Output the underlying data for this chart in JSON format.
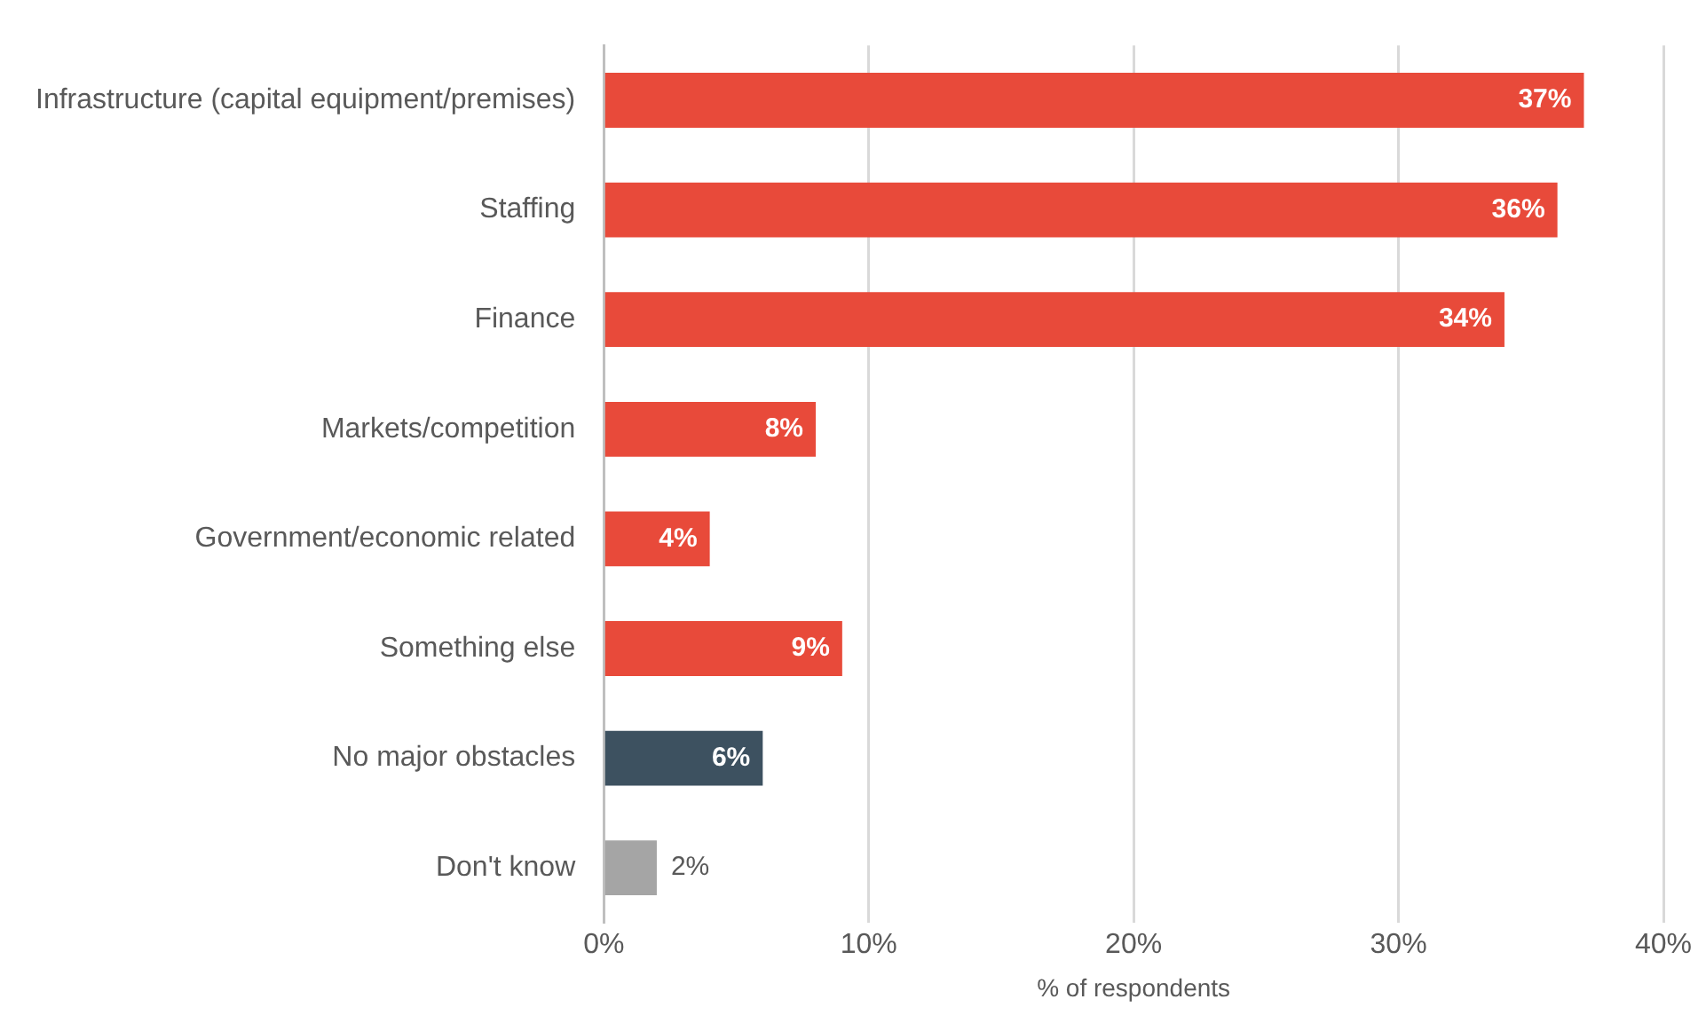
{
  "chart_data": {
    "type": "bar",
    "orientation": "horizontal",
    "xlabel": "% of respondents",
    "categories": [
      "Infrastructure (capital equipment/premises)",
      "Staffing",
      "Finance",
      "Markets/competition",
      "Government/economic related",
      "Something else",
      "No major obstacles",
      "Don't know"
    ],
    "values": [
      37,
      36,
      34,
      8,
      4,
      9,
      6,
      2
    ],
    "colors": [
      "#e84a3a",
      "#e84a3a",
      "#e84a3a",
      "#e84a3a",
      "#e84a3a",
      "#e84a3a",
      "#3d5160",
      "#a5a5a5"
    ],
    "value_labels": [
      "37%",
      "36%",
      "34%",
      "8%",
      "4%",
      "9%",
      "6%",
      "2%"
    ],
    "xlim": [
      0,
      40
    ],
    "xticks": [
      {
        "value": 0,
        "label": "0%"
      },
      {
        "value": 10,
        "label": "10%"
      },
      {
        "value": 20,
        "label": "20%"
      },
      {
        "value": 30,
        "label": "30%"
      },
      {
        "value": 40,
        "label": "40%"
      }
    ],
    "grid": "x",
    "legend": false
  }
}
